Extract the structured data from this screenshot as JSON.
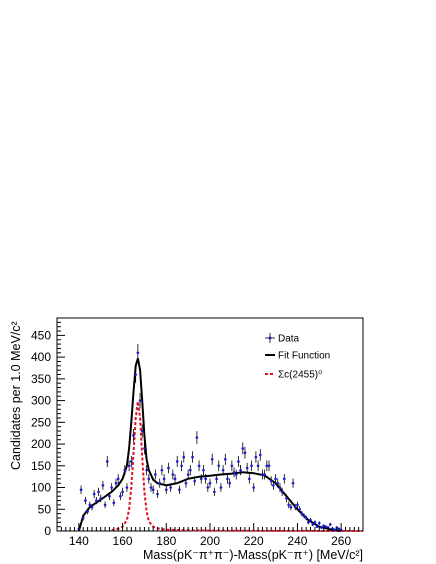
{
  "chart_data": {
    "type": "line",
    "xlabel": "Mass(pK⁻π⁺π⁻)-Mass(pK⁻π⁺) [MeV/c²]",
    "ylabel": "Candidates per 1.0 MeV/c²",
    "xlim": [
      130,
      270
    ],
    "ylim": [
      0,
      490
    ],
    "x_ticks": [
      140,
      160,
      180,
      200,
      220,
      240,
      260
    ],
    "y_ticks": [
      0,
      50,
      100,
      150,
      200,
      250,
      300,
      350,
      400,
      450
    ],
    "grid": false,
    "legend_position": "top-right",
    "legend": [
      {
        "label": "Data",
        "style": "points-with-errors",
        "color": "#1b1bd6"
      },
      {
        "label": "Fit Function",
        "style": "solid",
        "color": "#000000"
      },
      {
        "label": "Σc(2455)⁰",
        "style": "dashed",
        "color": "#e0102a"
      }
    ],
    "series": [
      {
        "name": "Data",
        "color": "#1b1bd6",
        "x": [
          140,
          141,
          142,
          143,
          144,
          145,
          146,
          147,
          148,
          149,
          150,
          151,
          152,
          153,
          154,
          155,
          156,
          157,
          158,
          159,
          160,
          161,
          162,
          163,
          164,
          165,
          166,
          167,
          168,
          169,
          170,
          171,
          172,
          173,
          174,
          175,
          176,
          177,
          178,
          179,
          180,
          181,
          182,
          183,
          184,
          185,
          186,
          187,
          188,
          189,
          190,
          191,
          192,
          193,
          194,
          195,
          196,
          197,
          198,
          199,
          200,
          201,
          202,
          203,
          204,
          205,
          206,
          207,
          208,
          209,
          210,
          211,
          212,
          213,
          214,
          215,
          216,
          217,
          218,
          219,
          220,
          221,
          222,
          223,
          224,
          225,
          226,
          227,
          228,
          229,
          230,
          231,
          232,
          233,
          234,
          235,
          236,
          237,
          238,
          239,
          240,
          241,
          242,
          243,
          244,
          245,
          246,
          247,
          248,
          249,
          250,
          251,
          252,
          253,
          254,
          255,
          256,
          257,
          258,
          259,
          260
        ],
        "y": [
          5,
          95,
          30,
          70,
          45,
          60,
          55,
          85,
          70,
          90,
          75,
          105,
          60,
          160,
          80,
          100,
          65,
          110,
          120,
          80,
          90,
          140,
          100,
          150,
          160,
          220,
          360,
          410,
          300,
          230,
          190,
          140,
          120,
          100,
          95,
          130,
          85,
          110,
          140,
          120,
          95,
          145,
          100,
          130,
          120,
          160,
          95,
          150,
          170,
          110,
          130,
          140,
          170,
          115,
          215,
          150,
          120,
          140,
          120,
          100,
          110,
          165,
          90,
          120,
          150,
          100,
          140,
          165,
          120,
          110,
          150,
          135,
          130,
          160,
          140,
          190,
          180,
          145,
          120,
          150,
          100,
          170,
          150,
          175,
          130,
          130,
          150,
          150,
          115,
          105,
          120,
          110,
          100,
          90,
          120,
          75,
          60,
          55,
          110,
          55,
          60,
          50,
          40,
          35,
          30,
          20,
          25,
          15,
          20,
          10,
          18,
          8,
          12,
          10,
          8,
          15,
          5,
          3,
          8,
          5,
          2
        ]
      },
      {
        "name": "Fit Function",
        "color": "#000000",
        "x": [
          140,
          142,
          145,
          150,
          155,
          158,
          160,
          162,
          163,
          164,
          165,
          166,
          167,
          168,
          169,
          170,
          171,
          172,
          174,
          176,
          180,
          185,
          190,
          195,
          200,
          205,
          210,
          215,
          220,
          225,
          230,
          235,
          240,
          245,
          250,
          255,
          258,
          260
        ],
        "y": [
          0,
          35,
          55,
          72,
          90,
          105,
          120,
          150,
          190,
          250,
          320,
          380,
          397,
          370,
          300,
          220,
          165,
          140,
          118,
          110,
          105,
          110,
          120,
          125,
          127,
          130,
          132,
          135,
          133,
          128,
          110,
          80,
          50,
          25,
          10,
          4,
          2,
          0
        ]
      },
      {
        "name": "Σc(2455)⁰",
        "color": "#e0102a",
        "x": [
          155,
          158,
          160,
          162,
          163,
          164,
          165,
          166,
          167,
          168,
          169,
          170,
          171,
          172,
          174,
          176,
          180,
          190,
          200,
          220,
          240,
          260,
          270
        ],
        "y": [
          2,
          5,
          10,
          25,
          50,
          100,
          180,
          260,
          298,
          260,
          170,
          90,
          45,
          22,
          10,
          6,
          3,
          1.5,
          1,
          0.5,
          0.3,
          0.1,
          0
        ]
      }
    ]
  }
}
